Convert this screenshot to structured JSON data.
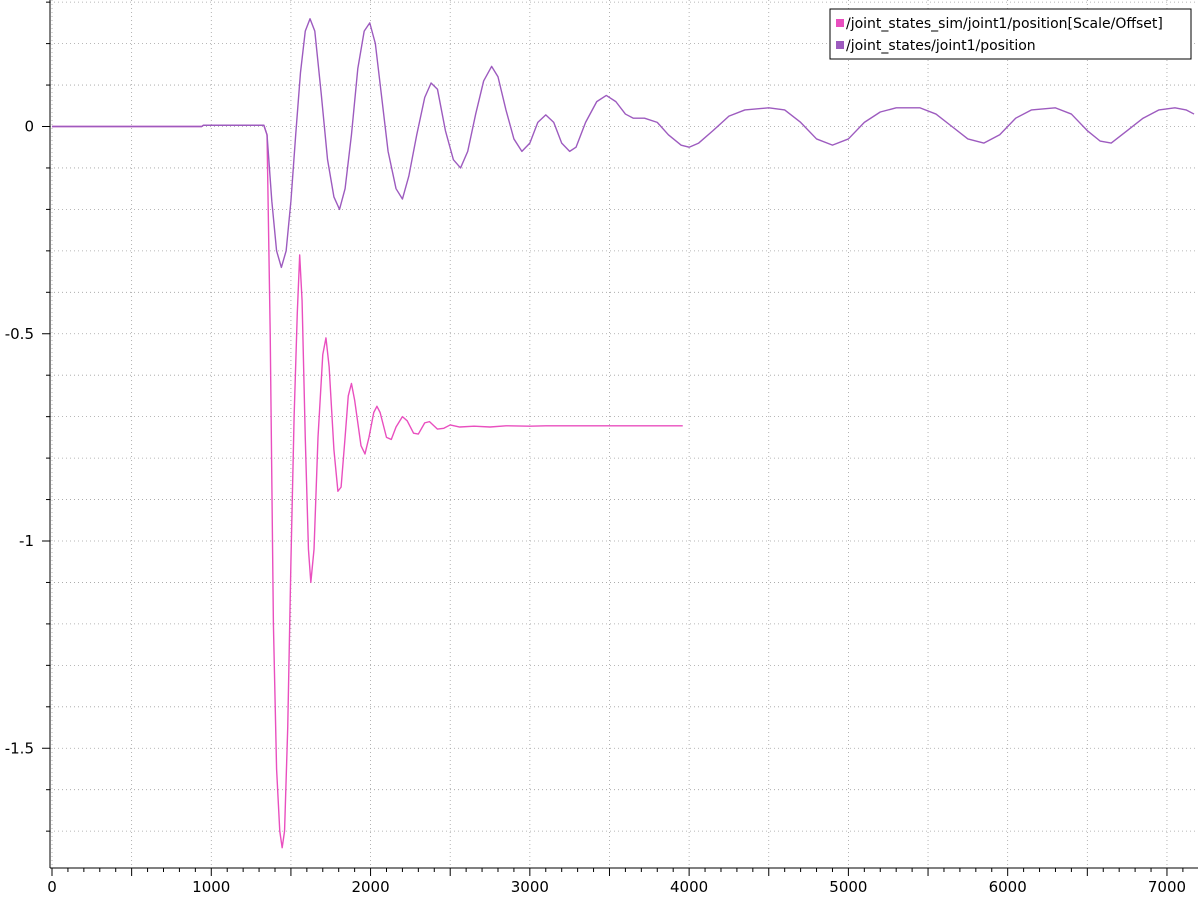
{
  "chart_data": {
    "type": "line",
    "title": "",
    "xlabel": "",
    "ylabel": "",
    "xlim": [
      0,
      7170
    ],
    "ylim": [
      -1.79,
      0.3
    ],
    "x_ticks": [
      0,
      1000,
      2000,
      3000,
      4000,
      5000,
      6000,
      7000
    ],
    "x_tick_labels": [
      "0",
      "1000",
      "2000",
      "3000",
      "4000",
      "5000",
      "6000",
      "7000"
    ],
    "y_ticks": [
      0,
      -0.5,
      -1,
      -1.5
    ],
    "y_tick_labels": [
      "0",
      "-0.5",
      "-1",
      "-1.5"
    ],
    "grid": true,
    "legend_position": "top-right",
    "series": [
      {
        "name": "/joint_states_sim/joint1/position[Scale/Offset]",
        "color": "#e94fbf",
        "points": [
          [
            0,
            0
          ],
          [
            940,
            0
          ],
          [
            950,
            0.003
          ],
          [
            1330,
            0.003
          ],
          [
            1350,
            -0.02
          ],
          [
            1370,
            -0.5
          ],
          [
            1390,
            -1.2
          ],
          [
            1410,
            -1.55
          ],
          [
            1430,
            -1.7
          ],
          [
            1445,
            -1.74
          ],
          [
            1460,
            -1.7
          ],
          [
            1480,
            -1.45
          ],
          [
            1500,
            -1.05
          ],
          [
            1520,
            -0.7
          ],
          [
            1540,
            -0.45
          ],
          [
            1555,
            -0.31
          ],
          [
            1570,
            -0.42
          ],
          [
            1590,
            -0.75
          ],
          [
            1610,
            -1.02
          ],
          [
            1625,
            -1.1
          ],
          [
            1645,
            -1.02
          ],
          [
            1670,
            -0.75
          ],
          [
            1700,
            -0.55
          ],
          [
            1720,
            -0.51
          ],
          [
            1740,
            -0.58
          ],
          [
            1770,
            -0.78
          ],
          [
            1795,
            -0.88
          ],
          [
            1815,
            -0.87
          ],
          [
            1840,
            -0.75
          ],
          [
            1860,
            -0.65
          ],
          [
            1880,
            -0.62
          ],
          [
            1900,
            -0.66
          ],
          [
            1940,
            -0.77
          ],
          [
            1965,
            -0.79
          ],
          [
            1990,
            -0.75
          ],
          [
            2020,
            -0.69
          ],
          [
            2040,
            -0.675
          ],
          [
            2060,
            -0.69
          ],
          [
            2100,
            -0.75
          ],
          [
            2130,
            -0.755
          ],
          [
            2160,
            -0.725
          ],
          [
            2200,
            -0.7
          ],
          [
            2230,
            -0.71
          ],
          [
            2270,
            -0.74
          ],
          [
            2300,
            -0.742
          ],
          [
            2340,
            -0.715
          ],
          [
            2370,
            -0.712
          ],
          [
            2420,
            -0.73
          ],
          [
            2460,
            -0.728
          ],
          [
            2500,
            -0.72
          ],
          [
            2560,
            -0.725
          ],
          [
            2650,
            -0.723
          ],
          [
            2750,
            -0.725
          ],
          [
            2850,
            -0.722
          ],
          [
            3000,
            -0.723
          ],
          [
            3100,
            -0.722
          ],
          [
            3960,
            -0.722
          ]
        ]
      },
      {
        "name": "/joint_states/joint1/position",
        "color": "#9d5bbf",
        "points": [
          [
            0,
            0
          ],
          [
            940,
            0
          ],
          [
            950,
            0.003
          ],
          [
            1330,
            0.003
          ],
          [
            1350,
            -0.02
          ],
          [
            1380,
            -0.18
          ],
          [
            1410,
            -0.3
          ],
          [
            1440,
            -0.34
          ],
          [
            1470,
            -0.3
          ],
          [
            1500,
            -0.18
          ],
          [
            1530,
            -0.02
          ],
          [
            1560,
            0.13
          ],
          [
            1590,
            0.23
          ],
          [
            1620,
            0.26
          ],
          [
            1650,
            0.23
          ],
          [
            1690,
            0.08
          ],
          [
            1730,
            -0.08
          ],
          [
            1770,
            -0.17
          ],
          [
            1805,
            -0.2
          ],
          [
            1840,
            -0.15
          ],
          [
            1880,
            -0.02
          ],
          [
            1920,
            0.14
          ],
          [
            1960,
            0.23
          ],
          [
            1995,
            0.25
          ],
          [
            2030,
            0.2
          ],
          [
            2070,
            0.07
          ],
          [
            2110,
            -0.06
          ],
          [
            2160,
            -0.15
          ],
          [
            2200,
            -0.175
          ],
          [
            2240,
            -0.12
          ],
          [
            2290,
            -0.02
          ],
          [
            2340,
            0.07
          ],
          [
            2380,
            0.105
          ],
          [
            2420,
            0.09
          ],
          [
            2470,
            -0.01
          ],
          [
            2520,
            -0.08
          ],
          [
            2565,
            -0.1
          ],
          [
            2610,
            -0.06
          ],
          [
            2660,
            0.03
          ],
          [
            2710,
            0.11
          ],
          [
            2760,
            0.145
          ],
          [
            2800,
            0.12
          ],
          [
            2850,
            0.04
          ],
          [
            2900,
            -0.03
          ],
          [
            2950,
            -0.06
          ],
          [
            3000,
            -0.04
          ],
          [
            3050,
            0.01
          ],
          [
            3100,
            0.028
          ],
          [
            3150,
            0.01
          ],
          [
            3200,
            -0.04
          ],
          [
            3250,
            -0.06
          ],
          [
            3290,
            -0.05
          ],
          [
            3350,
            0.01
          ],
          [
            3420,
            0.06
          ],
          [
            3480,
            0.075
          ],
          [
            3540,
            0.06
          ],
          [
            3600,
            0.03
          ],
          [
            3650,
            0.02
          ],
          [
            3720,
            0.02
          ],
          [
            3800,
            0.01
          ],
          [
            3870,
            -0.02
          ],
          [
            3950,
            -0.045
          ],
          [
            4000,
            -0.05
          ],
          [
            4060,
            -0.04
          ],
          [
            4150,
            -0.01
          ],
          [
            4250,
            0.025
          ],
          [
            4350,
            0.04
          ],
          [
            4500,
            0.045
          ],
          [
            4600,
            0.04
          ],
          [
            4700,
            0.01
          ],
          [
            4800,
            -0.03
          ],
          [
            4900,
            -0.045
          ],
          [
            5000,
            -0.03
          ],
          [
            5100,
            0.01
          ],
          [
            5200,
            0.035
          ],
          [
            5300,
            0.045
          ],
          [
            5450,
            0.045
          ],
          [
            5550,
            0.03
          ],
          [
            5650,
            0.0
          ],
          [
            5750,
            -0.03
          ],
          [
            5850,
            -0.04
          ],
          [
            5950,
            -0.02
          ],
          [
            6050,
            0.02
          ],
          [
            6150,
            0.04
          ],
          [
            6300,
            0.045
          ],
          [
            6400,
            0.03
          ],
          [
            6500,
            -0.01
          ],
          [
            6580,
            -0.035
          ],
          [
            6650,
            -0.04
          ],
          [
            6750,
            -0.01
          ],
          [
            6850,
            0.02
          ],
          [
            6950,
            0.04
          ],
          [
            7050,
            0.045
          ],
          [
            7120,
            0.04
          ],
          [
            7170,
            0.03
          ]
        ]
      }
    ]
  }
}
